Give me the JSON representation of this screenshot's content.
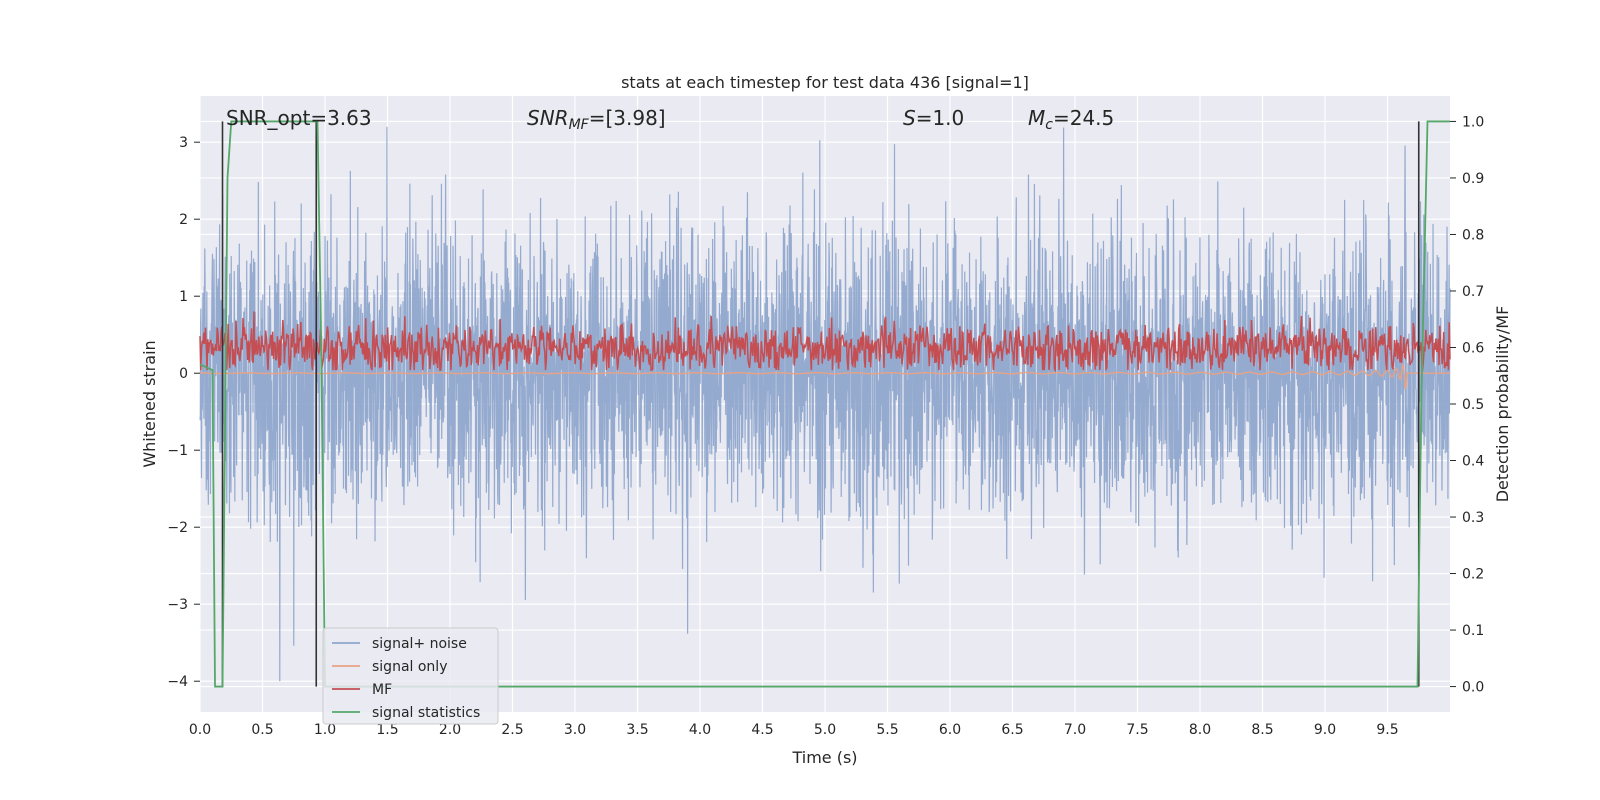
{
  "chart_data": {
    "type": "line",
    "title": "stats at each timestep for test data 436 [signal=1]",
    "xlabel": "Time (s)",
    "ylabel": "Whitened strain",
    "y2label": "Detection probability/MF",
    "xlim": [
      0.0,
      10.0
    ],
    "ylim": [
      -4.4,
      3.6
    ],
    "y2lim": [
      -0.045,
      1.045
    ],
    "xticks": [
      "0.0",
      "0.5",
      "1.0",
      "1.5",
      "2.0",
      "2.5",
      "3.0",
      "3.5",
      "4.0",
      "4.5",
      "5.0",
      "5.5",
      "6.0",
      "6.5",
      "7.0",
      "7.5",
      "8.0",
      "8.5",
      "9.0",
      "9.5"
    ],
    "xtick_values": [
      0.0,
      0.5,
      1.0,
      1.5,
      2.0,
      2.5,
      3.0,
      3.5,
      4.0,
      4.5,
      5.0,
      5.5,
      6.0,
      6.5,
      7.0,
      7.5,
      8.0,
      8.5,
      9.0,
      9.5
    ],
    "yticks": [
      "−4",
      "−3",
      "−2",
      "−1",
      "0",
      "1",
      "2",
      "3"
    ],
    "ytick_values": [
      -4,
      -3,
      -2,
      -1,
      0,
      1,
      2,
      3
    ],
    "y2ticks": [
      "0.0",
      "0.1",
      "0.2",
      "0.3",
      "0.4",
      "0.5",
      "0.6",
      "0.7",
      "0.8",
      "0.9",
      "1.0"
    ],
    "y2tick_values": [
      0.0,
      0.1,
      0.2,
      0.3,
      0.4,
      0.5,
      0.6,
      0.7,
      0.8,
      0.9,
      1.0
    ],
    "grid": true,
    "legend_position": "lower-left",
    "annotations": {
      "snr_opt": "SNR_opt=3.63",
      "snr_mf_base": "SNR",
      "snr_mf_sub": "MF",
      "snr_mf_value": "=[3.98]",
      "s_sym": "S",
      "s_value": "=1.0",
      "mc_sym": "M",
      "mc_sub": "c",
      "mc_value": "=24.5"
    },
    "series": [
      {
        "name": "signal+ noise",
        "color": "#8fa6cc",
        "amplitude_envelope": [
          -4.0,
          3.2
        ]
      },
      {
        "name": "signal only",
        "color": "#e8a285",
        "chirp_end_time": 9.65,
        "min_value": -0.65
      },
      {
        "name": "MF",
        "color": "#c44e52",
        "axis": "right",
        "mean_value": 0.6,
        "range": [
          0.56,
          0.7
        ]
      },
      {
        "name": "signal statistics",
        "color": "#55a868",
        "axis": "right",
        "x": [
          0.0,
          0.1,
          0.12,
          0.18,
          0.22,
          0.25,
          0.94,
          0.97,
          1.0,
          9.74,
          9.77,
          9.82,
          10.0
        ],
        "y": [
          0.57,
          0.56,
          0.0,
          0.0,
          0.9,
          1.0,
          1.0,
          0.6,
          0.0,
          0.0,
          0.5,
          1.0,
          1.0
        ]
      }
    ],
    "vertical_markers": [
      0.18,
      0.93,
      9.75
    ]
  }
}
